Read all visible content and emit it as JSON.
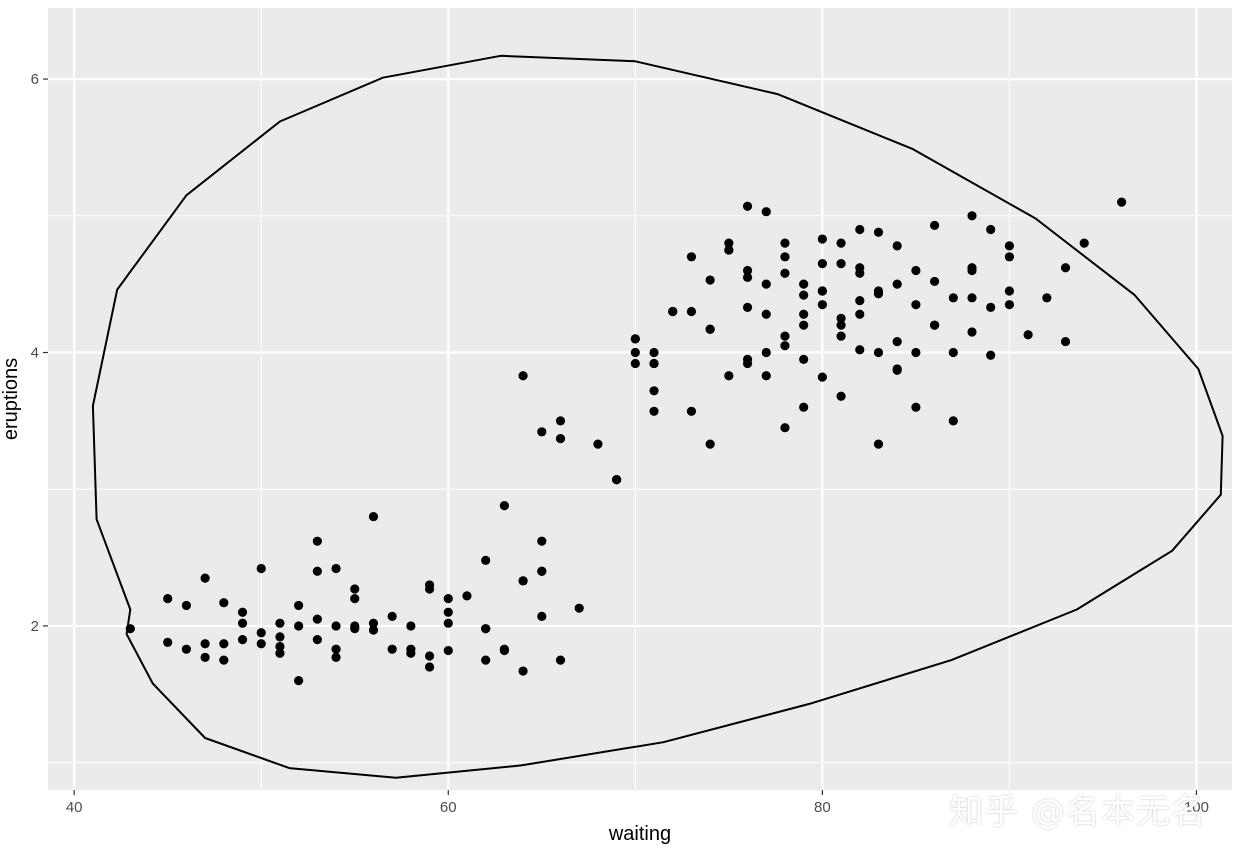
{
  "chart_data": {
    "type": "scatter",
    "xlabel": "waiting",
    "ylabel": "eruptions",
    "xlim": [
      38.6,
      101.9
    ],
    "ylim": [
      0.8,
      6.52
    ],
    "x_major_ticks": [
      40,
      60,
      80,
      100
    ],
    "x_tick_labels": [
      "40",
      "60",
      "80",
      "100"
    ],
    "x_minor_ticks": [
      50,
      70,
      90
    ],
    "y_major_ticks": [
      2,
      4,
      6
    ],
    "y_tick_labels": [
      "2",
      "4",
      "6"
    ],
    "y_minor_ticks": [
      1,
      3,
      5
    ],
    "grid": true,
    "legend": "none",
    "colors": {
      "panel_background": "#ebebeb",
      "grid_line": "#ffffff",
      "point": "#000000",
      "ellipse": "#000000",
      "tick_label": "#4d4d4d",
      "axis_title": "#000000"
    },
    "series": [
      {
        "type": "scatter",
        "x": [
          43,
          45,
          45,
          46,
          46,
          47,
          47,
          48,
          48,
          49,
          49,
          50,
          50,
          51,
          51,
          52,
          52,
          53,
          53,
          54,
          54,
          55,
          55,
          56,
          57,
          58,
          58,
          59,
          59,
          60,
          60,
          62,
          62,
          63,
          64,
          64,
          65,
          65,
          66,
          66,
          67,
          68,
          69,
          70,
          70,
          71,
          71,
          71,
          73,
          73,
          73,
          74,
          74,
          75,
          75,
          76,
          76,
          76,
          76,
          77,
          77,
          77,
          78,
          78,
          78,
          78,
          79,
          79,
          79,
          79,
          80,
          80,
          80,
          80,
          81,
          81,
          81,
          81,
          82,
          82,
          82,
          82,
          83,
          83,
          83,
          84,
          84,
          84,
          85,
          85,
          86,
          86,
          87,
          87,
          88,
          88,
          88,
          89,
          89,
          90,
          90,
          90,
          91,
          92,
          93,
          93,
          94,
          96,
          52,
          53,
          54,
          55,
          56,
          57,
          58,
          59,
          60,
          61,
          62,
          63,
          64,
          65,
          66,
          70,
          71,
          72,
          74,
          75,
          76,
          77,
          78,
          79,
          80,
          81,
          82,
          83,
          84,
          85,
          86,
          87,
          88,
          89,
          50,
          51,
          53,
          55,
          49,
          47,
          48,
          51,
          54,
          56,
          59,
          60,
          62,
          63,
          64,
          65,
          65,
          69,
          70,
          71,
          72,
          74,
          75,
          76,
          77,
          78,
          79,
          80,
          81,
          82,
          83,
          84,
          85,
          86,
          88,
          90
        ],
        "y": [
          1.98,
          2.2,
          1.88,
          1.83,
          2.15,
          1.87,
          2.35,
          1.87,
          2.17,
          2.1,
          1.9,
          2.42,
          1.87,
          2.02,
          1.85,
          2.0,
          1.6,
          2.62,
          1.9,
          1.83,
          2.42,
          2.2,
          1.98,
          2.8,
          1.83,
          2.0,
          1.83,
          2.3,
          1.7,
          2.2,
          1.82,
          2.48,
          1.75,
          2.88,
          1.67,
          3.83,
          2.62,
          2.07,
          3.5,
          3.37,
          2.13,
          3.33,
          3.07,
          4.0,
          4.1,
          3.72,
          4.0,
          3.57,
          4.7,
          4.3,
          3.57,
          4.53,
          3.33,
          4.8,
          3.83,
          5.07,
          4.33,
          3.92,
          4.6,
          5.03,
          4.0,
          4.5,
          4.8,
          3.45,
          4.12,
          4.7,
          4.42,
          3.6,
          4.28,
          4.5,
          4.83,
          4.35,
          3.82,
          4.65,
          4.8,
          4.25,
          3.68,
          4.12,
          4.9,
          4.28,
          4.62,
          4.02,
          4.88,
          3.33,
          4.45,
          4.78,
          4.08,
          3.88,
          4.35,
          3.6,
          4.93,
          4.2,
          4.4,
          3.5,
          4.62,
          5.0,
          4.15,
          4.9,
          3.98,
          4.7,
          4.35,
          4.78,
          4.13,
          4.4,
          4.62,
          4.08,
          4.8,
          5.1,
          2.15,
          2.4,
          1.77,
          2.27,
          1.97,
          2.07,
          1.8,
          2.27,
          2.1,
          2.22,
          1.98,
          1.83,
          2.33,
          2.4,
          1.75,
          4.1,
          3.92,
          4.3,
          4.17,
          4.75,
          4.55,
          4.28,
          4.58,
          4.2,
          4.45,
          4.65,
          4.38,
          4.43,
          4.5,
          4.6,
          4.52,
          4.0,
          4.4,
          4.33,
          1.95,
          1.8,
          2.05,
          2.0,
          2.02,
          1.77,
          1.75,
          1.92,
          2.0,
          2.02,
          1.78,
          2.02,
          1.98,
          1.82,
          2.33,
          2.4,
          3.42,
          3.07,
          3.92,
          3.92,
          4.3,
          4.17,
          4.75,
          3.95,
          3.83,
          4.05,
          3.95,
          4.45,
          4.2,
          4.58,
          4.0,
          3.87,
          4.0,
          4.2,
          4.6,
          4.45
        ],
        "color": "#000000",
        "name": ""
      },
      {
        "type": "ellipse",
        "x": [
          42.8,
          44.2,
          47.0,
          51.5,
          57.2,
          63.9,
          71.5,
          79.3,
          86.9,
          93.6,
          98.7,
          101.3,
          101.4,
          100.1,
          96.7,
          91.4,
          84.8,
          77.6,
          70.0,
          62.8,
          56.5,
          51.0,
          46.0,
          42.3,
          41.0,
          41.2,
          43.0
        ],
        "y": [
          1.94,
          1.58,
          1.18,
          0.96,
          0.89,
          0.98,
          1.15,
          1.43,
          1.75,
          2.12,
          2.55,
          2.96,
          3.39,
          3.88,
          4.42,
          4.98,
          5.49,
          5.89,
          6.13,
          6.17,
          6.01,
          5.69,
          5.15,
          4.46,
          3.61,
          2.78,
          2.12
        ],
        "color": "#000000",
        "name": ""
      }
    ]
  },
  "watermark": "知乎 @名本无名"
}
